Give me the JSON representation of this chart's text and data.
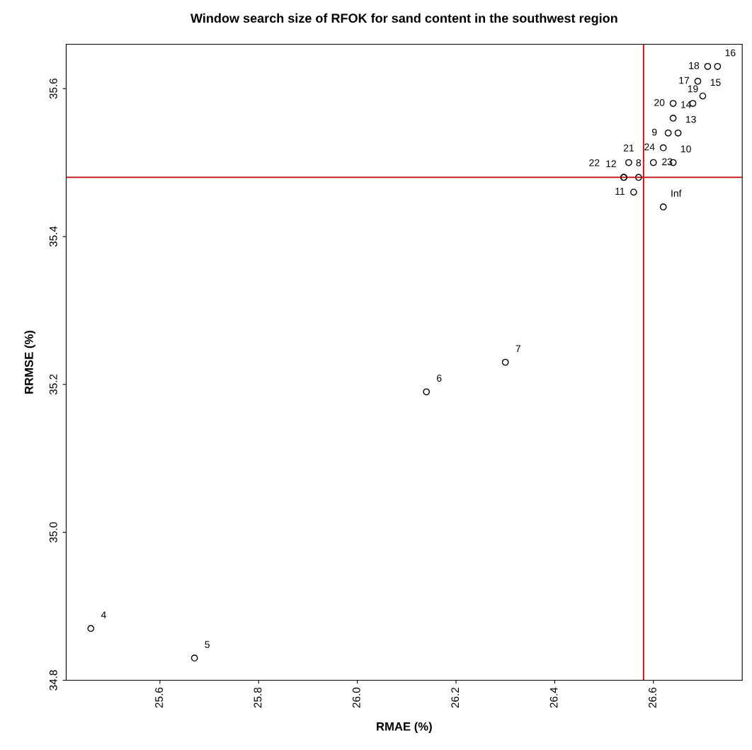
{
  "chart_data": {
    "type": "scatter",
    "title": "Window search size of RFOK for sand content in the southwest region",
    "xlabel": "RMAE (%)",
    "ylabel": "RRMSE (%)",
    "x": [
      25.46,
      25.67,
      26.14,
      26.3,
      26.57,
      26.63,
      26.64,
      26.56,
      26.54,
      26.65,
      26.64,
      26.7,
      26.73,
      26.69,
      26.71,
      26.68,
      26.64,
      26.55,
      26.54,
      26.6,
      26.62,
      26.62
    ],
    "values": [
      34.87,
      34.83,
      35.19,
      35.23,
      35.48,
      35.54,
      35.5,
      35.46,
      35.48,
      35.54,
      35.56,
      35.59,
      35.63,
      35.61,
      35.63,
      35.58,
      35.58,
      35.5,
      35.48,
      35.5,
      35.52,
      35.44
    ],
    "annotations": [
      {
        "text": "4",
        "x": 25.46,
        "y": 34.87
      },
      {
        "text": "5",
        "x": 25.67,
        "y": 34.83
      },
      {
        "text": "6",
        "x": 26.14,
        "y": 35.19
      },
      {
        "text": "7",
        "x": 26.3,
        "y": 35.23
      },
      {
        "text": "8",
        "x": 26.57,
        "y": 35.48
      },
      {
        "text": "9",
        "x": 26.63,
        "y": 35.54
      },
      {
        "text": "10",
        "x": 26.64,
        "y": 35.5
      },
      {
        "text": "11",
        "x": 26.56,
        "y": 35.46
      },
      {
        "text": "12",
        "x": 26.54,
        "y": 35.48
      },
      {
        "text": "13",
        "x": 26.65,
        "y": 35.54
      },
      {
        "text": "14",
        "x": 26.64,
        "y": 35.56
      },
      {
        "text": "15",
        "x": 26.7,
        "y": 35.59
      },
      {
        "text": "16",
        "x": 26.73,
        "y": 35.63
      },
      {
        "text": "17",
        "x": 26.69,
        "y": 35.61
      },
      {
        "text": "18",
        "x": 26.71,
        "y": 35.63
      },
      {
        "text": "19",
        "x": 26.68,
        "y": 35.58
      },
      {
        "text": "20",
        "x": 26.64,
        "y": 35.58
      },
      {
        "text": "21",
        "x": 26.55,
        "y": 35.5
      },
      {
        "text": "22",
        "x": 26.54,
        "y": 35.48
      },
      {
        "text": "23",
        "x": 26.6,
        "y": 35.5
      },
      {
        "text": "24",
        "x": 26.62,
        "y": 35.52
      },
      {
        "text": "Inf",
        "x": 26.62,
        "y": 35.44
      }
    ],
    "color": "#000000",
    "marker": "circle",
    "xlim": [
      25.41,
      26.78
    ],
    "ylim": [
      34.8,
      35.66
    ],
    "xticks": [
      25.6,
      25.8,
      {
        "value": 26.0,
        "label": "26.0"
      },
      26.2,
      26.4,
      26.6
    ],
    "yticks": [
      34.8,
      {
        "value": 35.0,
        "label": "35.0"
      },
      35.2,
      35.4,
      35.6
    ],
    "ref_lines": [
      {
        "axis": "x",
        "value": 26.58,
        "color": "#cc0000"
      },
      {
        "axis": "y",
        "value": 35.48,
        "color": "#cc0000"
      }
    ]
  }
}
